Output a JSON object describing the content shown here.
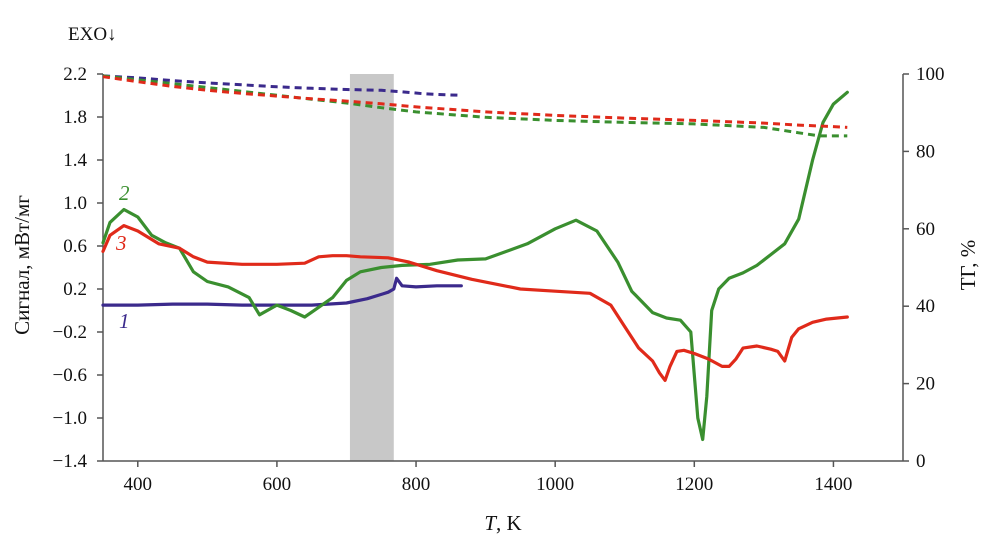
{
  "chart_data": {
    "type": "line",
    "title": "",
    "exo_label": "EXO↓",
    "xlabel": {
      "symbol": "T",
      "unit": ", K"
    },
    "ylabel_left": "Сигнал, мВт/мг",
    "ylabel_right": "ТГ, %",
    "xlim": [
      350,
      1500
    ],
    "ylim_left": [
      -1.4,
      2.2
    ],
    "ylim_right": [
      0,
      100
    ],
    "x_ticks": [
      "400",
      "600",
      "800",
      "1000",
      "1200",
      "1400"
    ],
    "y_ticks_left": [
      "2.2",
      "1.8",
      "1.4",
      "1.0",
      "0.6",
      "0.2",
      "−0.2",
      "−0.6",
      "−1.0",
      "−1.4"
    ],
    "y_ticks_right": [
      "100",
      "80",
      "60",
      "40",
      "20",
      "0"
    ],
    "grid": false,
    "shaded_region": {
      "x_range": [
        705,
        768
      ],
      "color": "#c8c8c8"
    },
    "series": [
      {
        "label": "1",
        "color": "#3b2a8c",
        "axis": "left",
        "style": "solid",
        "x": [
          350,
          400,
          450,
          500,
          550,
          600,
          650,
          700,
          730,
          750,
          760,
          768,
          772,
          780,
          800,
          830,
          865
        ],
        "y": [
          0.05,
          0.05,
          0.06,
          0.06,
          0.05,
          0.05,
          0.05,
          0.07,
          0.11,
          0.15,
          0.17,
          0.2,
          0.3,
          0.23,
          0.22,
          0.23,
          0.23
        ]
      },
      {
        "label": "2",
        "color": "#3a8f2f",
        "axis": "left",
        "style": "solid",
        "x": [
          350,
          360,
          380,
          400,
          420,
          440,
          460,
          480,
          500,
          530,
          560,
          575,
          600,
          620,
          640,
          660,
          680,
          700,
          720,
          750,
          780,
          820,
          860,
          900,
          960,
          1000,
          1030,
          1060,
          1090,
          1110,
          1140,
          1160,
          1180,
          1195,
          1205,
          1212,
          1218,
          1225,
          1235,
          1250,
          1270,
          1290,
          1310,
          1330,
          1350,
          1370,
          1385,
          1400,
          1420
        ],
        "y": [
          0.63,
          0.82,
          0.94,
          0.87,
          0.7,
          0.63,
          0.58,
          0.36,
          0.27,
          0.22,
          0.12,
          -0.04,
          0.05,
          0.0,
          -0.06,
          0.03,
          0.12,
          0.28,
          0.36,
          0.4,
          0.42,
          0.43,
          0.47,
          0.48,
          0.62,
          0.76,
          0.84,
          0.74,
          0.45,
          0.18,
          -0.02,
          -0.07,
          -0.09,
          -0.2,
          -1.0,
          -1.2,
          -0.8,
          0.0,
          0.2,
          0.3,
          0.35,
          0.42,
          0.52,
          0.62,
          0.85,
          1.4,
          1.75,
          1.92,
          2.03
        ]
      },
      {
        "label": "3",
        "color": "#e02a1a",
        "axis": "left",
        "style": "solid",
        "x": [
          350,
          360,
          380,
          400,
          430,
          460,
          480,
          500,
          550,
          600,
          640,
          660,
          680,
          700,
          720,
          760,
          790,
          830,
          880,
          950,
          1000,
          1050,
          1080,
          1100,
          1120,
          1140,
          1150,
          1158,
          1165,
          1175,
          1185,
          1200,
          1220,
          1240,
          1250,
          1260,
          1270,
          1290,
          1310,
          1320,
          1330,
          1340,
          1350,
          1370,
          1390,
          1420
        ],
        "y": [
          0.55,
          0.7,
          0.79,
          0.74,
          0.62,
          0.58,
          0.5,
          0.45,
          0.43,
          0.43,
          0.44,
          0.5,
          0.51,
          0.51,
          0.5,
          0.49,
          0.45,
          0.37,
          0.29,
          0.2,
          0.18,
          0.16,
          0.05,
          -0.15,
          -0.35,
          -0.47,
          -0.58,
          -0.65,
          -0.52,
          -0.38,
          -0.37,
          -0.4,
          -0.45,
          -0.52,
          -0.52,
          -0.45,
          -0.35,
          -0.33,
          -0.36,
          -0.38,
          -0.47,
          -0.25,
          -0.17,
          -0.11,
          -0.08,
          -0.06
        ]
      },
      {
        "label": "",
        "color": "#3b2a8c",
        "axis": "right",
        "style": "dashed",
        "x": [
          350,
          400,
          450,
          500,
          550,
          600,
          650,
          700,
          750,
          780,
          810,
          830,
          865
        ],
        "y": [
          99.5,
          99.0,
          98.3,
          97.7,
          97.2,
          96.7,
          96.3,
          96.0,
          95.8,
          95.4,
          94.9,
          94.7,
          94.5
        ]
      },
      {
        "label": "",
        "color": "#3a8f2f",
        "axis": "right",
        "style": "dashed",
        "x": [
          350,
          400,
          450,
          500,
          550,
          600,
          650,
          700,
          750,
          800,
          900,
          1000,
          1100,
          1200,
          1300,
          1350,
          1380,
          1420
        ],
        "y": [
          99.5,
          98.5,
          97.5,
          96.5,
          95.5,
          94.5,
          93.5,
          92.5,
          91.3,
          90.2,
          88.8,
          88.0,
          87.5,
          87.1,
          86.2,
          84.8,
          84.0,
          84.0
        ]
      },
      {
        "label": "",
        "color": "#e02a1a",
        "axis": "right",
        "style": "dashed",
        "x": [
          350,
          400,
          450,
          500,
          550,
          600,
          650,
          700,
          750,
          800,
          900,
          1000,
          1100,
          1200,
          1300,
          1350,
          1400,
          1420
        ],
        "y": [
          99.3,
          98.0,
          96.8,
          95.8,
          95.0,
          94.3,
          93.6,
          93.0,
          92.3,
          91.5,
          90.2,
          89.3,
          88.6,
          88.0,
          87.3,
          86.8,
          86.4,
          86.2
        ]
      }
    ]
  }
}
